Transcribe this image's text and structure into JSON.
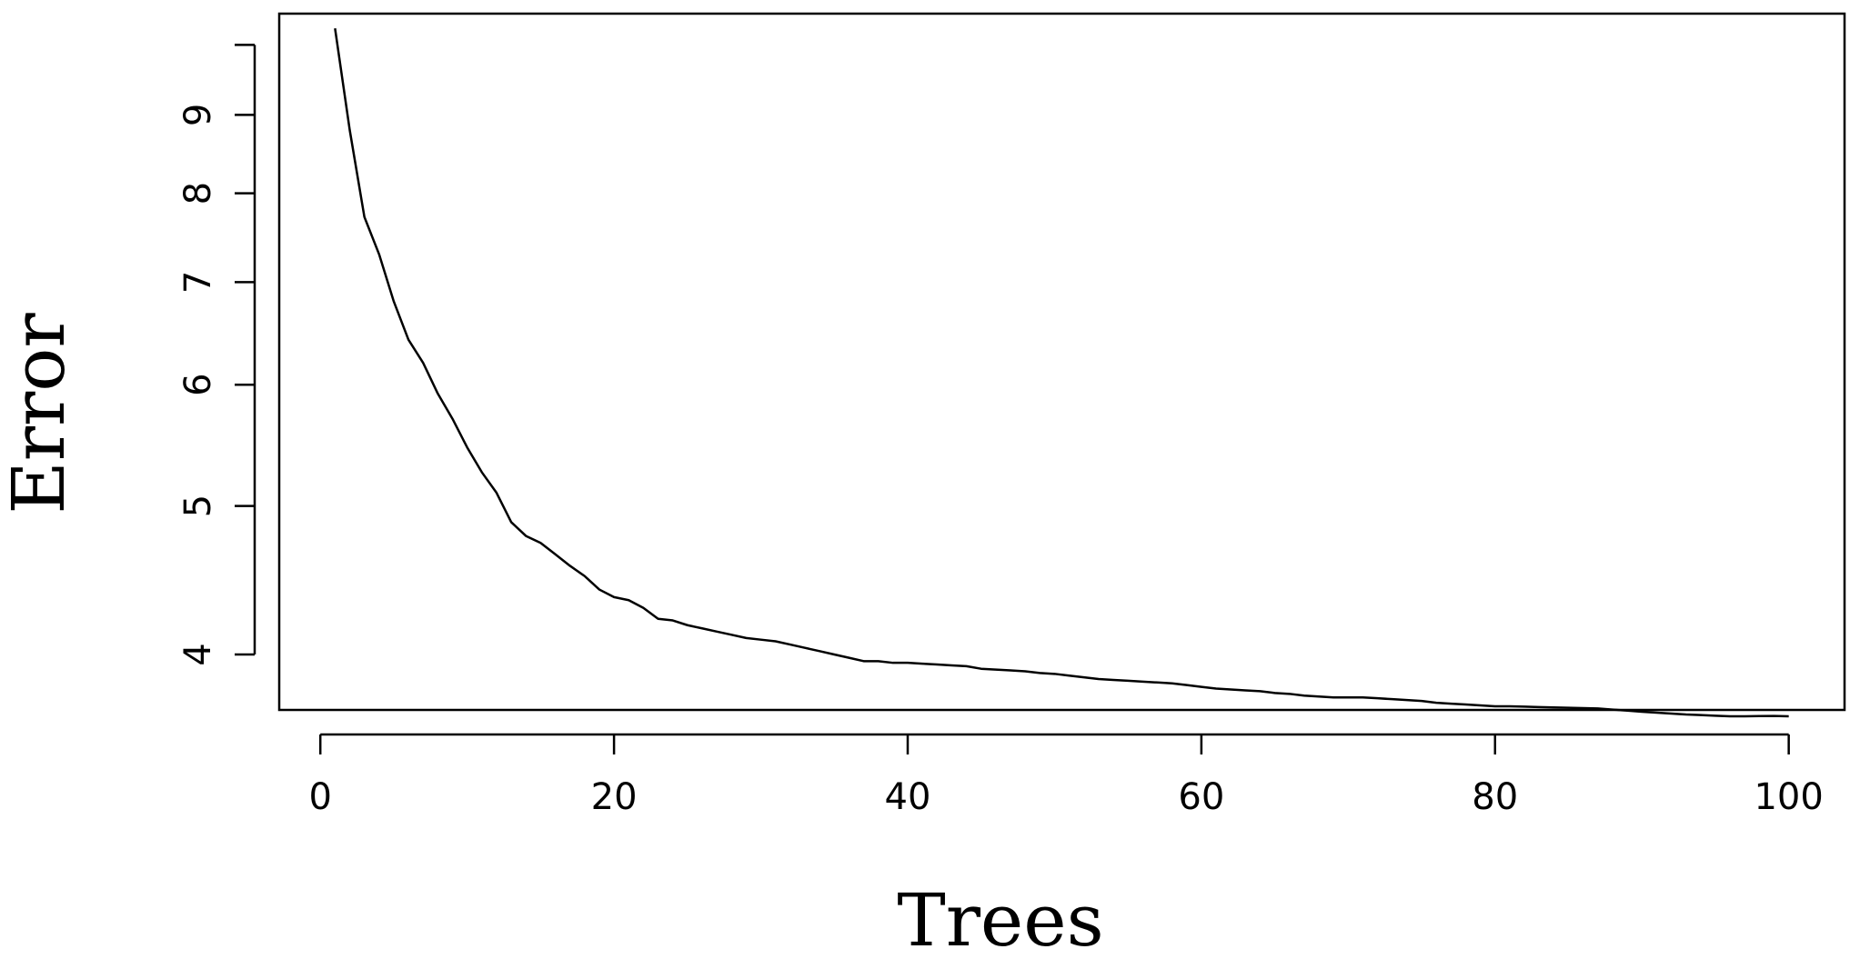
{
  "chart_data": {
    "type": "line",
    "xlabel": "Trees",
    "ylabel": "Error",
    "y_scale": "log",
    "xlim": [
      -2.8,
      103.8
    ],
    "ylim": [
      3.68,
      10.48
    ],
    "grid": false,
    "legend": "none",
    "x_ticks": [
      0,
      20,
      40,
      60,
      80,
      100
    ],
    "y_ticks": [
      4,
      5,
      6,
      7,
      8,
      9,
      10
    ],
    "y_tick_labels": [
      "4",
      "5",
      "6",
      "7",
      "8",
      "9",
      ""
    ],
    "series": [
      {
        "x": [
          1,
          2,
          3,
          4,
          5,
          6,
          7,
          8,
          9,
          10,
          11,
          12,
          13,
          14,
          15,
          16,
          17,
          18,
          19,
          20,
          21,
          22,
          23,
          24,
          25,
          26,
          27,
          28,
          29,
          30,
          31,
          32,
          33,
          34,
          35,
          36,
          37,
          38,
          39,
          40,
          41,
          42,
          43,
          44,
          45,
          46,
          47,
          48,
          49,
          50,
          51,
          52,
          53,
          54,
          55,
          56,
          57,
          58,
          59,
          60,
          61,
          62,
          63,
          64,
          65,
          66,
          67,
          68,
          69,
          70,
          71,
          72,
          73,
          74,
          75,
          76,
          77,
          78,
          79,
          80,
          81,
          82,
          83,
          84,
          85,
          86,
          87,
          88,
          89,
          90,
          91,
          92,
          93,
          94,
          95,
          96,
          97,
          98,
          99,
          100
        ],
        "values": [
          10.25,
          8.8,
          7.72,
          7.3,
          6.8,
          6.42,
          6.2,
          5.92,
          5.7,
          5.46,
          5.26,
          5.1,
          4.88,
          4.78,
          4.73,
          4.65,
          4.57,
          4.5,
          4.41,
          4.36,
          4.34,
          4.29,
          4.22,
          4.21,
          4.18,
          4.16,
          4.14,
          4.12,
          4.1,
          4.09,
          4.08,
          4.06,
          4.04,
          4.02,
          4.0,
          3.98,
          3.96,
          3.96,
          3.95,
          3.95,
          3.945,
          3.94,
          3.935,
          3.93,
          3.915,
          3.91,
          3.905,
          3.9,
          3.89,
          3.885,
          3.875,
          3.865,
          3.855,
          3.85,
          3.845,
          3.84,
          3.835,
          3.83,
          3.82,
          3.81,
          3.8,
          3.795,
          3.79,
          3.785,
          3.775,
          3.77,
          3.76,
          3.755,
          3.75,
          3.75,
          3.75,
          3.745,
          3.74,
          3.735,
          3.73,
          3.72,
          3.715,
          3.71,
          3.705,
          3.7,
          3.7,
          3.698,
          3.696,
          3.694,
          3.692,
          3.69,
          3.688,
          3.682,
          3.676,
          3.67,
          3.665,
          3.66,
          3.655,
          3.652,
          3.648,
          3.645,
          3.645,
          3.646,
          3.647,
          3.645
        ],
        "color": "#000000"
      }
    ]
  }
}
